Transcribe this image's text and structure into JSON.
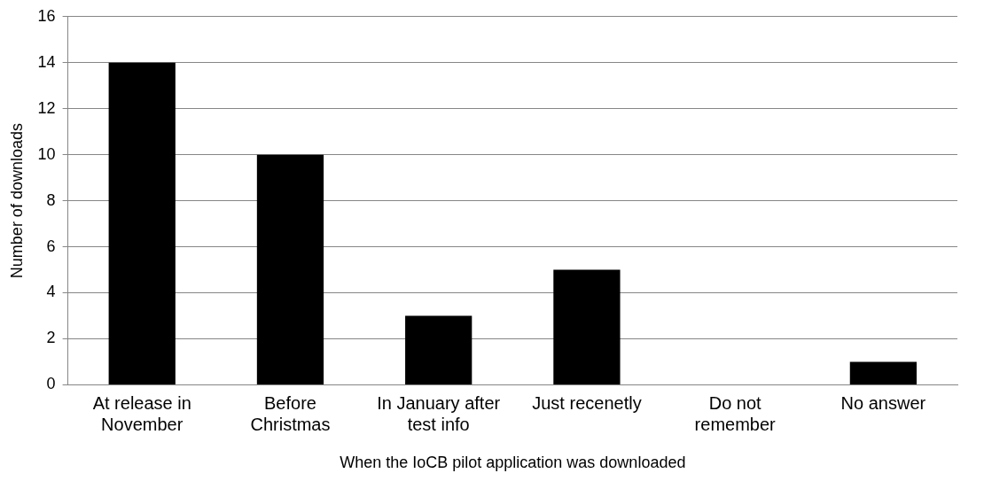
{
  "chart_data": {
    "type": "bar",
    "xlabel": "When the IoCB pilot application was downloaded",
    "ylabel": "Number of downloads",
    "categories": [
      "At release in November",
      "Before Christmas",
      "In January after test info",
      "Just recenetly",
      "Do not remember",
      "No answer"
    ],
    "values": [
      14,
      10,
      3,
      5,
      0,
      1
    ],
    "color": "#000000",
    "ylim": [
      0,
      16
    ],
    "yticks": [
      0,
      2,
      4,
      6,
      8,
      10,
      12,
      14,
      16
    ],
    "grid": "y",
    "legend": false
  }
}
